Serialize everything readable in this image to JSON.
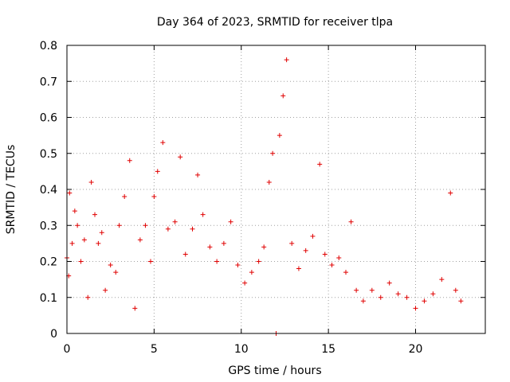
{
  "chart_data": {
    "type": "scatter",
    "title": "Day 364 of 2023, SRMTID for receiver tlpa",
    "xlabel": "GPS time / hours",
    "ylabel": "SRMTID / TECUs",
    "xlim": [
      0,
      24
    ],
    "ylim": [
      0,
      0.8
    ],
    "xticks": [
      0,
      5,
      10,
      15,
      20
    ],
    "yticks": [
      0,
      0.1,
      0.2,
      0.3,
      0.4,
      0.5,
      0.6,
      0.7,
      0.8
    ],
    "xtick_labels": [
      "0",
      "5",
      "10",
      "15",
      "20"
    ],
    "ytick_labels": [
      "0",
      "0.1",
      "0.2",
      "0.3",
      "0.4",
      "0.5",
      "0.6",
      "0.7",
      "0.8"
    ],
    "grid": true,
    "marker": "+",
    "marker_color": "#e00000",
    "series_summary": [
      {
        "x": 0.0,
        "y": 0.21
      },
      {
        "x": 0.1,
        "y": 0.16
      },
      {
        "x": 0.15,
        "y": 0.39
      },
      {
        "x": 0.3,
        "y": 0.25
      },
      {
        "x": 0.45,
        "y": 0.34
      },
      {
        "x": 0.6,
        "y": 0.3
      },
      {
        "x": 0.8,
        "y": 0.2
      },
      {
        "x": 1.0,
        "y": 0.26
      },
      {
        "x": 1.2,
        "y": 0.1
      },
      {
        "x": 1.4,
        "y": 0.42
      },
      {
        "x": 1.6,
        "y": 0.33
      },
      {
        "x": 1.8,
        "y": 0.25
      },
      {
        "x": 2.0,
        "y": 0.28
      },
      {
        "x": 2.2,
        "y": 0.12
      },
      {
        "x": 2.5,
        "y": 0.19
      },
      {
        "x": 2.8,
        "y": 0.17
      },
      {
        "x": 3.0,
        "y": 0.3
      },
      {
        "x": 3.3,
        "y": 0.38
      },
      {
        "x": 3.6,
        "y": 0.48
      },
      {
        "x": 3.9,
        "y": 0.07
      },
      {
        "x": 4.2,
        "y": 0.26
      },
      {
        "x": 4.5,
        "y": 0.3
      },
      {
        "x": 4.8,
        "y": 0.2
      },
      {
        "x": 5.0,
        "y": 0.38
      },
      {
        "x": 5.2,
        "y": 0.45
      },
      {
        "x": 5.5,
        "y": 0.53
      },
      {
        "x": 5.8,
        "y": 0.29
      },
      {
        "x": 6.2,
        "y": 0.31
      },
      {
        "x": 6.5,
        "y": 0.49
      },
      {
        "x": 6.8,
        "y": 0.22
      },
      {
        "x": 7.2,
        "y": 0.29
      },
      {
        "x": 7.5,
        "y": 0.44
      },
      {
        "x": 7.8,
        "y": 0.33
      },
      {
        "x": 8.2,
        "y": 0.24
      },
      {
        "x": 8.6,
        "y": 0.2
      },
      {
        "x": 9.0,
        "y": 0.25
      },
      {
        "x": 9.4,
        "y": 0.31
      },
      {
        "x": 9.8,
        "y": 0.19
      },
      {
        "x": 10.2,
        "y": 0.14
      },
      {
        "x": 10.6,
        "y": 0.17
      },
      {
        "x": 11.0,
        "y": 0.2
      },
      {
        "x": 11.3,
        "y": 0.24
      },
      {
        "x": 11.6,
        "y": 0.42
      },
      {
        "x": 11.8,
        "y": 0.5
      },
      {
        "x": 12.0,
        "y": 0.0
      },
      {
        "x": 12.2,
        "y": 0.55
      },
      {
        "x": 12.4,
        "y": 0.66
      },
      {
        "x": 12.6,
        "y": 0.76
      },
      {
        "x": 12.9,
        "y": 0.25
      },
      {
        "x": 13.3,
        "y": 0.18
      },
      {
        "x": 13.7,
        "y": 0.23
      },
      {
        "x": 14.1,
        "y": 0.27
      },
      {
        "x": 14.5,
        "y": 0.47
      },
      {
        "x": 14.8,
        "y": 0.22
      },
      {
        "x": 15.2,
        "y": 0.19
      },
      {
        "x": 15.6,
        "y": 0.21
      },
      {
        "x": 16.0,
        "y": 0.17
      },
      {
        "x": 16.3,
        "y": 0.31
      },
      {
        "x": 16.6,
        "y": 0.12
      },
      {
        "x": 17.0,
        "y": 0.09
      },
      {
        "x": 17.5,
        "y": 0.12
      },
      {
        "x": 18.0,
        "y": 0.1
      },
      {
        "x": 18.5,
        "y": 0.14
      },
      {
        "x": 19.0,
        "y": 0.11
      },
      {
        "x": 19.5,
        "y": 0.1
      },
      {
        "x": 20.0,
        "y": 0.07
      },
      {
        "x": 20.5,
        "y": 0.09
      },
      {
        "x": 21.0,
        "y": 0.11
      },
      {
        "x": 21.5,
        "y": 0.15
      },
      {
        "x": 22.0,
        "y": 0.39
      },
      {
        "x": 22.3,
        "y": 0.12
      },
      {
        "x": 22.6,
        "y": 0.09
      }
    ]
  }
}
